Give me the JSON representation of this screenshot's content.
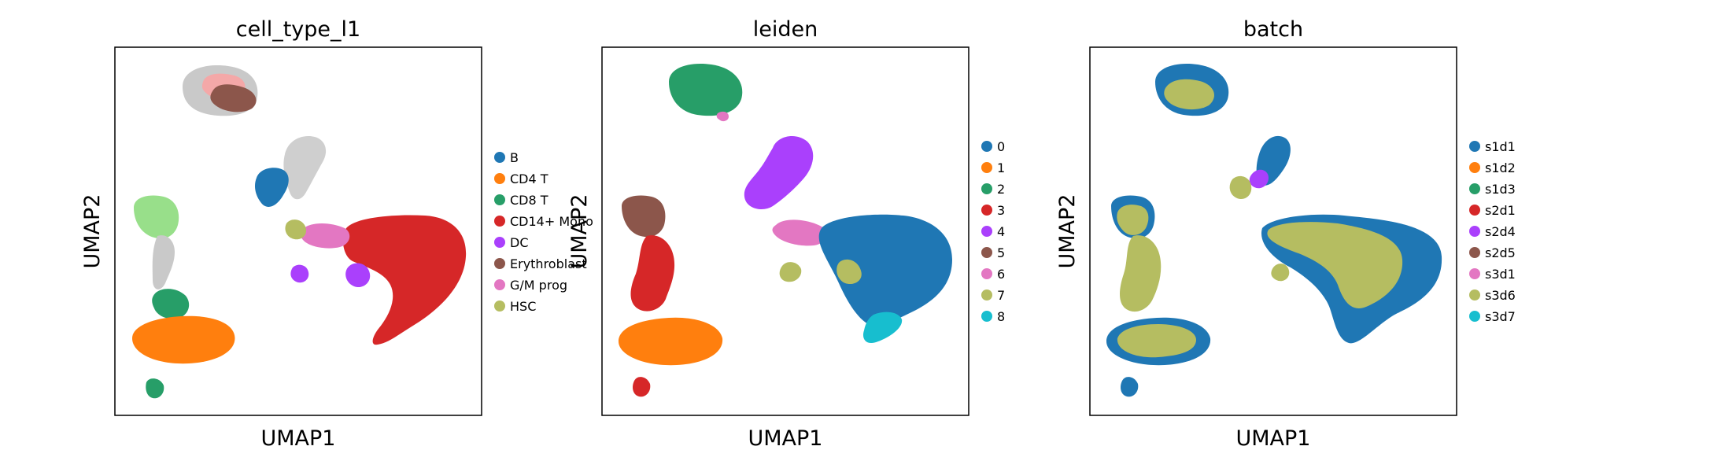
{
  "chart_data": [
    {
      "type": "scatter",
      "title": "cell_type_l1",
      "xlabel": "UMAP1",
      "ylabel": "UMAP2",
      "legend_position": "right",
      "grid": false,
      "ticks": false,
      "series": [
        {
          "name": "B",
          "color": "#1f77b4"
        },
        {
          "name": "CD4 T",
          "color": "#ff7f0e"
        },
        {
          "name": "CD8 T",
          "color": "#279e68"
        },
        {
          "name": "CD14+ Mono",
          "color": "#d62728"
        },
        {
          "name": "DC",
          "color": "#aa40fc"
        },
        {
          "name": "Erythroblast",
          "color": "#8c564b"
        },
        {
          "name": "G/M prog",
          "color": "#e377c2"
        },
        {
          "name": "HSC",
          "color": "#b5bd61"
        }
      ]
    },
    {
      "type": "scatter",
      "title": "leiden",
      "xlabel": "UMAP1",
      "ylabel": "UMAP2",
      "legend_position": "right",
      "grid": false,
      "ticks": false,
      "series": [
        {
          "name": "0",
          "color": "#1f77b4"
        },
        {
          "name": "1",
          "color": "#ff7f0e"
        },
        {
          "name": "2",
          "color": "#279e68"
        },
        {
          "name": "3",
          "color": "#d62728"
        },
        {
          "name": "4",
          "color": "#aa40fc"
        },
        {
          "name": "5",
          "color": "#8c564b"
        },
        {
          "name": "6",
          "color": "#e377c2"
        },
        {
          "name": "7",
          "color": "#b5bd61"
        },
        {
          "name": "8",
          "color": "#17becf"
        }
      ]
    },
    {
      "type": "scatter",
      "title": "batch",
      "xlabel": "UMAP1",
      "ylabel": "UMAP2",
      "legend_position": "right",
      "grid": false,
      "ticks": false,
      "series": [
        {
          "name": "s1d1",
          "color": "#1f77b4"
        },
        {
          "name": "s1d2",
          "color": "#ff7f0e"
        },
        {
          "name": "s1d3",
          "color": "#279e68"
        },
        {
          "name": "s2d1",
          "color": "#d62728"
        },
        {
          "name": "s2d4",
          "color": "#aa40fc"
        },
        {
          "name": "s2d5",
          "color": "#8c564b"
        },
        {
          "name": "s3d1",
          "color": "#e377c2"
        },
        {
          "name": "s3d6",
          "color": "#b5bd61"
        },
        {
          "name": "s3d7",
          "color": "#17becf"
        }
      ]
    }
  ]
}
